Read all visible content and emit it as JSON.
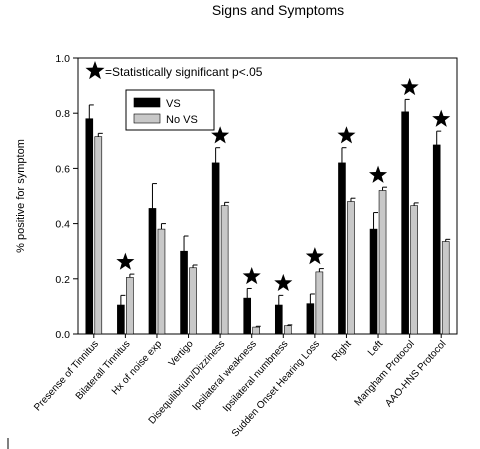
{
  "chart_data": {
    "type": "bar",
    "title": "Signs and Symptoms",
    "xlabel": "",
    "ylabel": "% positive for symptom",
    "ylim": [
      0,
      1.0
    ],
    "yticks": [
      "0.0",
      "0.2",
      "0.4",
      "0.6",
      "0.8",
      "1.0"
    ],
    "grid": false,
    "legend_position": "top-left",
    "annotation": "=Statistically significant p<.05",
    "categories": [
      "Presense of Tinnitus",
      "Bilaterall Tinnitus",
      "Hx of noise exp",
      "Vertigo",
      "Disequilibrium/Dizziness",
      "Ipsilateral weakness",
      "Ipsilateral numbness",
      "Sudden Onset Hearing Loss",
      "Right",
      "Left",
      "Mangham Protocol",
      "AAO-HNS Protocol"
    ],
    "series": [
      {
        "name": "VS",
        "color": "#000000",
        "values": [
          0.78,
          0.105,
          0.455,
          0.3,
          0.62,
          0.13,
          0.105,
          0.11,
          0.62,
          0.38,
          0.805,
          0.685
        ],
        "error": [
          0.05,
          0.035,
          0.09,
          0.055,
          0.055,
          0.035,
          0.035,
          0.035,
          0.055,
          0.06,
          0.045,
          0.05
        ]
      },
      {
        "name": "No VS",
        "color": "#c8c8c8",
        "values": [
          0.715,
          0.205,
          0.38,
          0.24,
          0.465,
          0.025,
          0.03,
          0.225,
          0.48,
          0.52,
          0.465,
          0.335
        ],
        "error": [
          0.012,
          0.012,
          0.02,
          0.01,
          0.012,
          0.003,
          0.003,
          0.012,
          0.012,
          0.012,
          0.01,
          0.008
        ]
      }
    ],
    "significant": [
      false,
      true,
      false,
      false,
      true,
      true,
      true,
      true,
      true,
      true,
      true,
      true
    ]
  }
}
